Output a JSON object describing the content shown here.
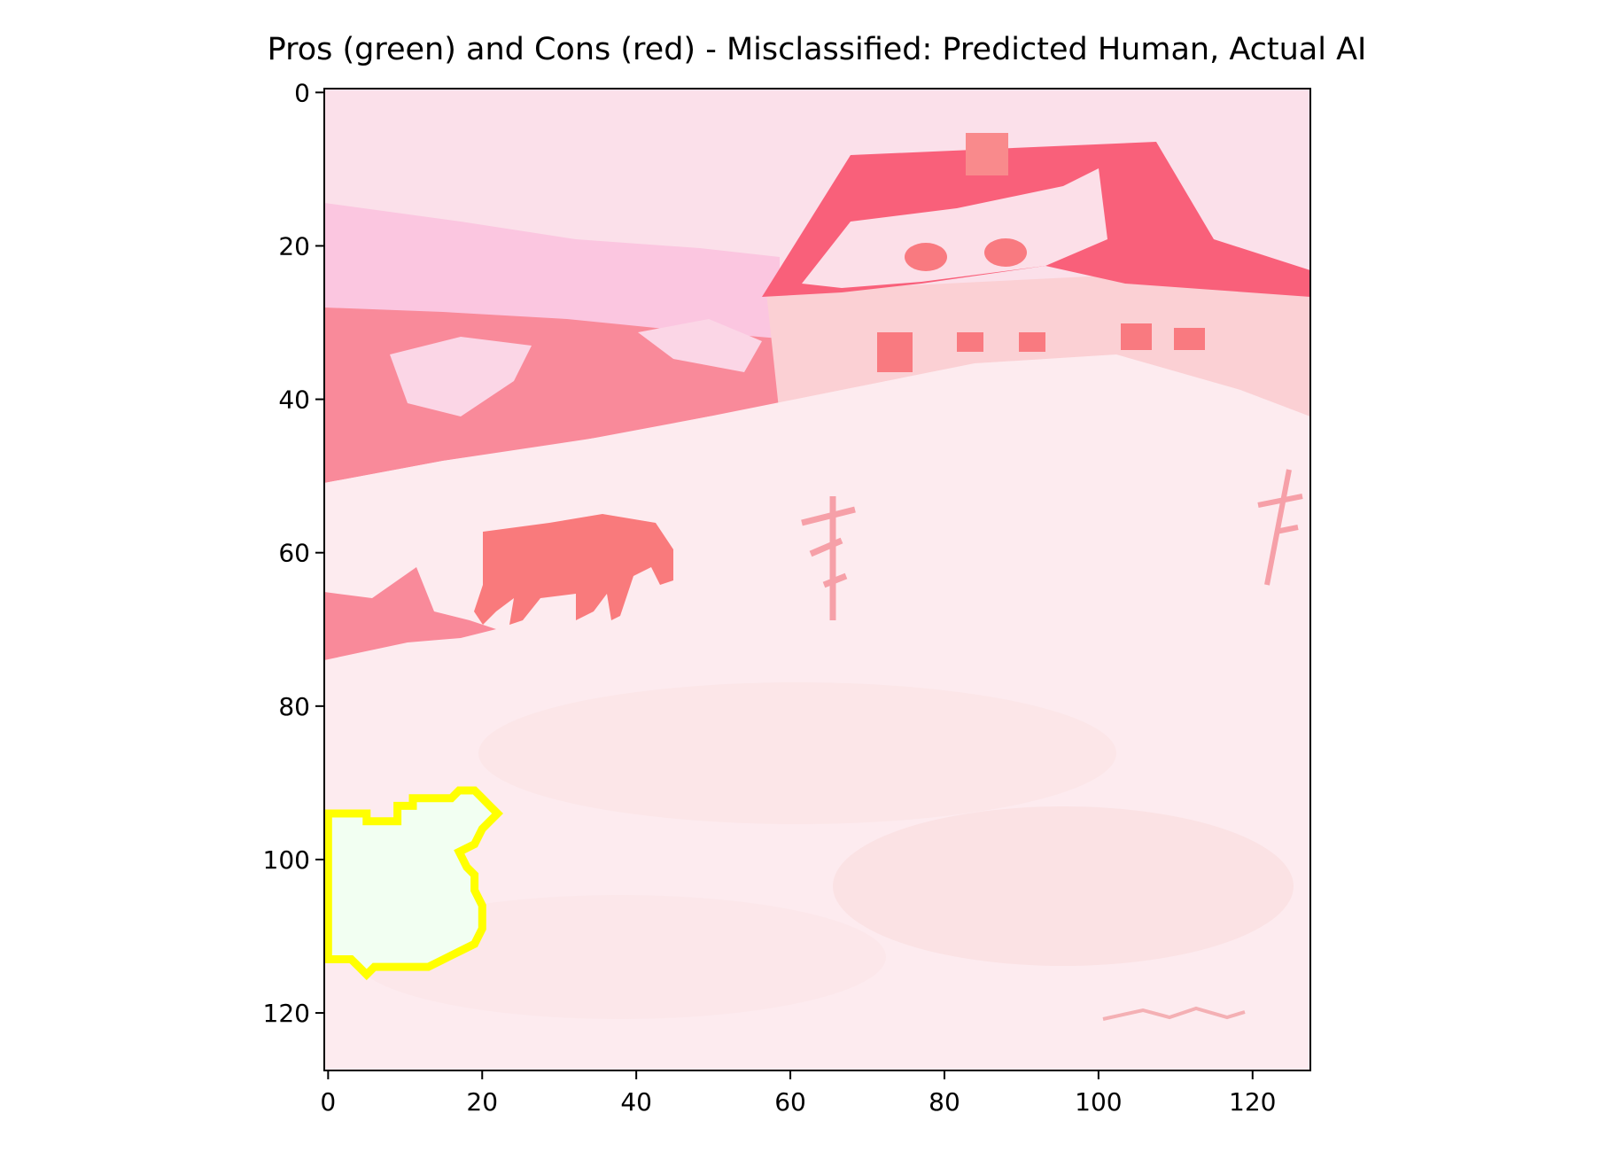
{
  "chart_data": {
    "type": "heatmap",
    "title": "Pros (green) and Cons (red) - Misclassified: Predicted Human, Actual AI",
    "xlabel": "",
    "ylabel": "",
    "xlim": [
      -0.5,
      127.5
    ],
    "ylim": [
      127.5,
      -0.5
    ],
    "x_ticks": [
      0,
      20,
      40,
      60,
      80,
      100,
      120
    ],
    "y_ticks": [
      0,
      20,
      40,
      60,
      80,
      100,
      120
    ],
    "grid": false,
    "legend": "none",
    "image_grid": [
      128,
      128
    ],
    "highlight_region": {
      "outline_color": "#ffff00",
      "fill_color": "#f2fff2",
      "boundary": [
        [
          0,
          94
        ],
        [
          5,
          94
        ],
        [
          5,
          95
        ],
        [
          9,
          95
        ],
        [
          9,
          93
        ],
        [
          11,
          93
        ],
        [
          11,
          92
        ],
        [
          16,
          92
        ],
        [
          17,
          91
        ],
        [
          19,
          91
        ],
        [
          20,
          92
        ],
        [
          21,
          93
        ],
        [
          22,
          94
        ],
        [
          21,
          95
        ],
        [
          20,
          96
        ],
        [
          19,
          98
        ],
        [
          17,
          99
        ],
        [
          18,
          101
        ],
        [
          19,
          102
        ],
        [
          19,
          104
        ],
        [
          20,
          106
        ],
        [
          20,
          109
        ],
        [
          19,
          111
        ],
        [
          17,
          112
        ],
        [
          15,
          113
        ],
        [
          13,
          114
        ],
        [
          12,
          114
        ],
        [
          10,
          114
        ],
        [
          6,
          114
        ],
        [
          5,
          115
        ],
        [
          4,
          114
        ],
        [
          3,
          113
        ],
        [
          0,
          113
        ]
      ]
    },
    "colors": {
      "sky": "#fbe0ea",
      "mountain": "#fbc6e0",
      "forest": "#f98a9a",
      "roof": "#f9607a",
      "house_wall": "#fbd0d4",
      "window": "#f97a80",
      "snow": "#fde9ee",
      "horse": "#f97a7c",
      "tree": "#f6a0a8",
      "outline": "#ffff00"
    }
  }
}
